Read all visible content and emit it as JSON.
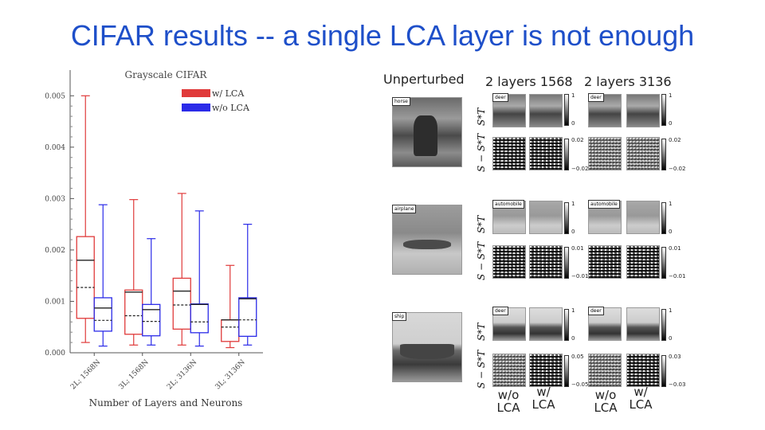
{
  "slide": {
    "title": "CIFAR results -- a single LCA layer is not enough"
  },
  "chart_data": {
    "type": "box",
    "title": "Grayscale CIFAR",
    "xlabel": "Number of Layers and Neurons",
    "ylabel": "",
    "ylim": [
      0,
      0.0055
    ],
    "yticks": [
      "0.000",
      "0.001",
      "0.002",
      "0.003",
      "0.004",
      "0.005"
    ],
    "ytick_values": [
      0,
      0.001,
      0.002,
      0.003,
      0.004,
      0.005
    ],
    "categories": [
      "2L; 1568N",
      "3L; 1568N",
      "2L; 3136N",
      "3L; 3136N"
    ],
    "legend_position": "top-right",
    "series": [
      {
        "name": "w/ LCA",
        "color": "#e03a3a",
        "boxes": [
          {
            "whislo": 0.0002,
            "q1": 0.00067,
            "med": 0.0018,
            "mean": 0.00127,
            "q3": 0.00226,
            "whishi": 0.005
          },
          {
            "whislo": 0.00015,
            "q1": 0.00036,
            "med": 0.00118,
            "mean": 0.00072,
            "q3": 0.00122,
            "whishi": 0.00298
          },
          {
            "whislo": 0.00015,
            "q1": 0.00046,
            "med": 0.0012,
            "mean": 0.00093,
            "q3": 0.00145,
            "whishi": 0.0031
          },
          {
            "whislo": 0.0001,
            "q1": 0.00022,
            "med": 0.00064,
            "mean": 0.0005,
            "q3": 0.00064,
            "whishi": 0.0017
          }
        ]
      },
      {
        "name": "w/o LCA",
        "color": "#2b2be8",
        "boxes": [
          {
            "whislo": 0.00013,
            "q1": 0.00042,
            "med": 0.00087,
            "mean": 0.00063,
            "q3": 0.00107,
            "whishi": 0.00288
          },
          {
            "whislo": 0.00015,
            "q1": 0.00033,
            "med": 0.00084,
            "mean": 0.00061,
            "q3": 0.00094,
            "whishi": 0.00222
          },
          {
            "whislo": 0.00013,
            "q1": 0.00039,
            "med": 0.00094,
            "mean": 0.0006,
            "q3": 0.00095,
            "whishi": 0.00276
          },
          {
            "whislo": 0.00015,
            "q1": 0.00032,
            "med": 0.00105,
            "mean": 0.00064,
            "q3": 0.00107,
            "whishi": 0.0025
          }
        ]
      }
    ]
  },
  "panel": {
    "headers": {
      "unperturbed": "Unperturbed",
      "layers1568": "2 layers 1568",
      "layers3136": "2 layers 3136"
    },
    "row_labels": {
      "star": "S*T",
      "diff": "S − S*T"
    },
    "rows": [
      {
        "original_label": "horse",
        "adv_label_1568": "deer",
        "adv_label_3136": "deer",
        "cbar_top_max": "1",
        "cbar_top_min": "0",
        "cbar_diff_max": "0.02",
        "cbar_diff_min": "−0.02"
      },
      {
        "original_label": "airplane",
        "adv_label_1568": "automobile",
        "adv_label_3136": "automobile",
        "cbar_top_max": "1",
        "cbar_top_min": "0",
        "cbar_diff_max": "0.01",
        "cbar_diff_min": "−0.01"
      },
      {
        "original_label": "ship",
        "adv_label_1568": "deer",
        "adv_label_3136": "deer",
        "cbar_top_max": "1",
        "cbar_top_min": "0",
        "cbar_diff_max": "0.05",
        "cbar_diff_min": "−0.05",
        "cbar_diff_max_b": "0.03",
        "cbar_diff_min_b": "−0.03"
      }
    ],
    "captions": {
      "without_line1": "w/o",
      "without_line2": "LCA",
      "with_line1": "w/",
      "with_line2": "LCA"
    }
  }
}
